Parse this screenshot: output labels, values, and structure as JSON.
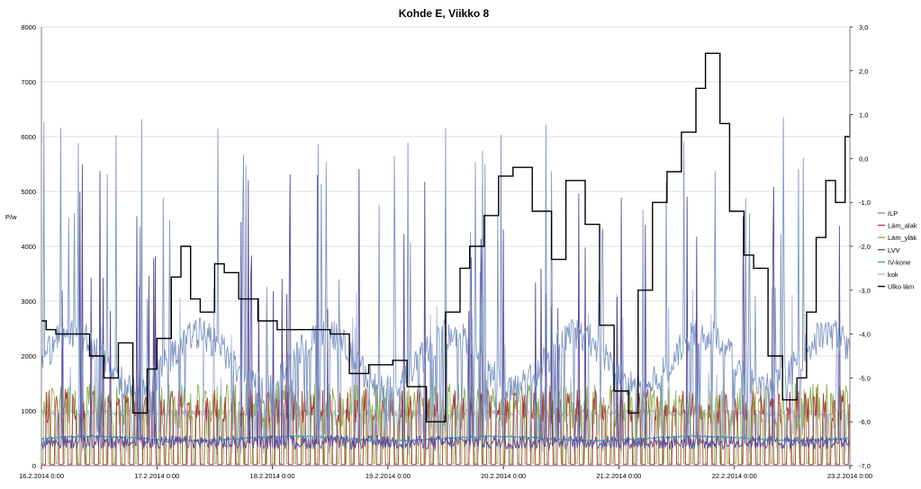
{
  "chart_data": {
    "type": "line",
    "title": "Kohde E, Viikko 8",
    "ylabel": "P/w",
    "ylim": [
      0,
      8000
    ],
    "yticks": [
      "0",
      "1000",
      "2000",
      "3000",
      "4000",
      "5000",
      "6000",
      "7000",
      "8000"
    ],
    "y2lim": [
      -7.0,
      3.0
    ],
    "y2ticks": [
      "-7,0",
      "-6,0",
      "-5,0",
      "-4,0",
      "-3,0",
      "-2,0",
      "-1,0",
      "0,0",
      "1,0",
      "2,0",
      "3,0"
    ],
    "xlim": [
      "16.2.2014 0:00",
      "23.2.2014 0:00"
    ],
    "xticks": [
      "16.2.2014 0:00",
      "17.2.2014 0:00",
      "18.2.2014 0:00",
      "19.2.2014 0:00",
      "20.2.2014 0:00",
      "21.2.2014 0:00",
      "22.2.2014 0:00",
      "23.2.2014 0:00"
    ],
    "grid": true,
    "legend_position": "right",
    "series": [
      {
        "name": "ILP",
        "color": "#7f97c4",
        "axis": "left",
        "approx": "spiky 200-1600 W base with frequent spikes to 3000-6500 W"
      },
      {
        "name": "Läm_alak",
        "color": "#b23b3b",
        "axis": "left",
        "values_level": [
          0,
          1400
        ],
        "approx": "on/off pulses between 0 and ~1400 W"
      },
      {
        "name": "Läm_yläk",
        "color": "#8db04c",
        "axis": "left",
        "values_level": [
          0,
          1500
        ],
        "approx": "on/off pulses between 0 and ~1500 W"
      },
      {
        "name": "LVV",
        "color": "#5a4a9a",
        "axis": "left",
        "approx": "spikes up to ~5500 W"
      },
      {
        "name": "IV-kone",
        "color": "#3fa6c4",
        "axis": "left",
        "approx": "nearly flat ~500 W"
      },
      {
        "name": "kok",
        "color": "#a9b9dc",
        "axis": "left",
        "approx": "0-1000 W with short spikes"
      },
      {
        "name": "Ulko läm",
        "color": "#000000",
        "axis": "right",
        "x": [
          "16.2.2014 0:00",
          "16.2.2014 1:00",
          "16.2.2014 3:00",
          "16.2.2014 6:00",
          "16.2.2014 10:00",
          "16.2.2014 13:00",
          "16.2.2014 16:00",
          "16.2.2014 19:00",
          "16.2.2014 22:00",
          "17.2.2014 0:00",
          "17.2.2014 3:00",
          "17.2.2014 5:00",
          "17.2.2014 7:00",
          "17.2.2014 9:00",
          "17.2.2014 12:00",
          "17.2.2014 14:00",
          "17.2.2014 17:00",
          "17.2.2014 21:00",
          "18.2.2014 1:00",
          "18.2.2014 4:00",
          "18.2.2014 8:00",
          "18.2.2014 12:00",
          "18.2.2014 16:00",
          "18.2.2014 20:00",
          "19.2.2014 1:00",
          "19.2.2014 4:00",
          "19.2.2014 8:00",
          "19.2.2014 12:00",
          "19.2.2014 15:00",
          "19.2.2014 17:00",
          "19.2.2014 20:00",
          "19.2.2014 23:00",
          "20.2.2014 2:00",
          "20.2.2014 6:00",
          "20.2.2014 10:00",
          "20.2.2014 13:00",
          "20.2.2014 17:00",
          "20.2.2014 20:00",
          "20.2.2014 23:00",
          "21.2.2014 2:00",
          "21.2.2014 4:00",
          "21.2.2014 7:00",
          "21.2.2014 10:00",
          "21.2.2014 13:00",
          "21.2.2014 16:00",
          "21.2.2014 18:00",
          "21.2.2014 21:00",
          "21.2.2014 23:00",
          "22.2.2014 2:00",
          "22.2.2014 4:00",
          "22.2.2014 7:00",
          "22.2.2014 10:00",
          "22.2.2014 13:00",
          "22.2.2014 15:00",
          "22.2.2014 17:00",
          "22.2.2014 19:00",
          "22.2.2014 21:00",
          "22.2.2014 23:00",
          "23.2.2014 0:00"
        ],
        "values": [
          -3.7,
          -3.9,
          -4.0,
          -4.0,
          -4.5,
          -5.0,
          -4.2,
          -5.8,
          -4.8,
          -4.1,
          -2.7,
          -2.0,
          -3.2,
          -3.5,
          -2.4,
          -2.6,
          -3.2,
          -3.7,
          -3.9,
          -3.9,
          -3.9,
          -4.0,
          -4.9,
          -4.7,
          -4.6,
          -5.2,
          -6.0,
          -3.5,
          -2.5,
          -2.0,
          -1.3,
          -0.4,
          -0.2,
          -1.2,
          -2.3,
          -0.5,
          -1.5,
          -3.8,
          -5.3,
          -5.8,
          -3.0,
          -1.0,
          -0.3,
          0.6,
          1.6,
          2.4,
          0.8,
          -1.2,
          -2.2,
          -2.5,
          -4.5,
          -5.5,
          -5.0,
          -3.5,
          -1.8,
          -0.5,
          -1.0,
          0.5,
          1.0
        ]
      }
    ]
  }
}
